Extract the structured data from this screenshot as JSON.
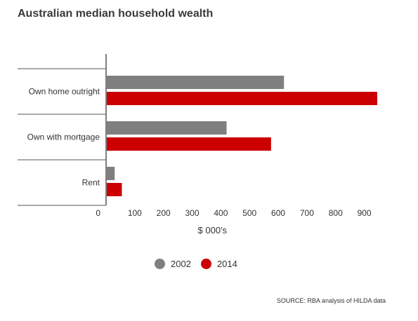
{
  "chart_data": {
    "type": "bar",
    "orientation": "horizontal",
    "title": "Australian median household wealth",
    "categories": [
      "Own home outright",
      "Own with mortgage",
      "Rent"
    ],
    "series": [
      {
        "name": "2002",
        "color": "#7f7f7f",
        "values": [
          620,
          420,
          30
        ]
      },
      {
        "name": "2014",
        "color": "#cc0000",
        "values": [
          945,
          575,
          55
        ]
      }
    ],
    "xlabel": "$ 000's",
    "xlim": [
      0,
      950
    ],
    "xticks": [
      0,
      100,
      200,
      300,
      400,
      500,
      600,
      700,
      800,
      900
    ],
    "legend_position": "bottom",
    "grid": false
  },
  "source": "SOURCE: RBA analysis of HILDA data"
}
